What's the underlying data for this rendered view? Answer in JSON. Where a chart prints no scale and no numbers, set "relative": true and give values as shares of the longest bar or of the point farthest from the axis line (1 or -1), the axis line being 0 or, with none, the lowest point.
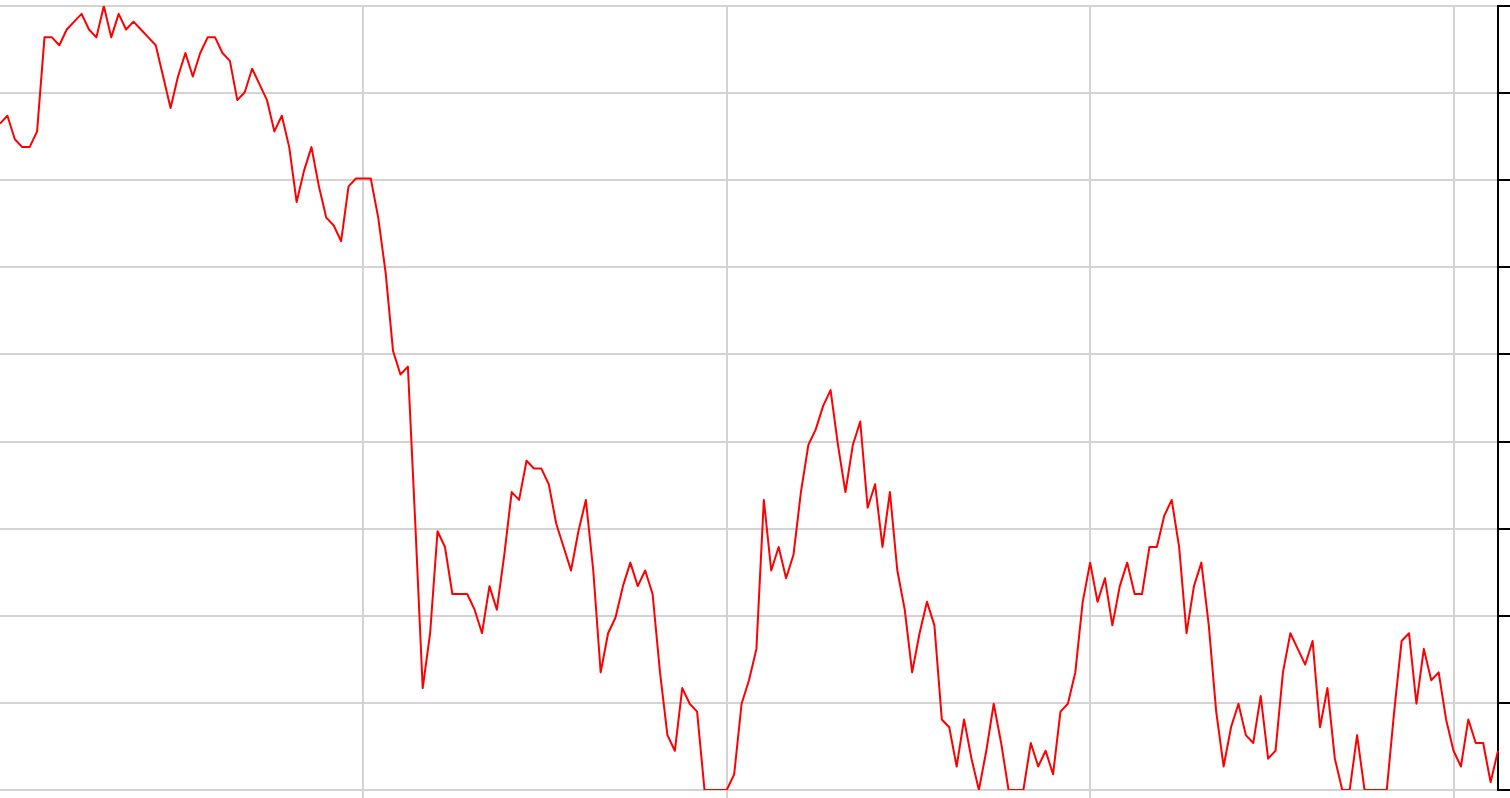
{
  "chart_data": {
    "type": "line",
    "relative": true,
    "grid": true,
    "legend": false,
    "marker": "none",
    "line_style": "solid",
    "categories": [
      null,
      null,
      null,
      null,
      null,
      null,
      null,
      null,
      null,
      null,
      null,
      null,
      null,
      null,
      null,
      null,
      null,
      null,
      null,
      null,
      null,
      null,
      null,
      null,
      null,
      null,
      null,
      null,
      null,
      null,
      null,
      null,
      null,
      null,
      null,
      null,
      null,
      null,
      null,
      null,
      null,
      null,
      null,
      null,
      null,
      null,
      null,
      null,
      null,
      null,
      null,
      null,
      null,
      null,
      null,
      null,
      null,
      null,
      null,
      null,
      null,
      null,
      null,
      null,
      null,
      null,
      null,
      null,
      null,
      null,
      null,
      null,
      null,
      null,
      null,
      null,
      null,
      null,
      null,
      null,
      null,
      null,
      null,
      null,
      null,
      null,
      null,
      null,
      null,
      null,
      null,
      null,
      null,
      null,
      null,
      null,
      null,
      null,
      null,
      null,
      null,
      null,
      null,
      null,
      null,
      null,
      null,
      null,
      null,
      null,
      null,
      null,
      null,
      null,
      null,
      null,
      null,
      null,
      null,
      null,
      null,
      null,
      null,
      null,
      null,
      null,
      null,
      null,
      null,
      null,
      null,
      null,
      null,
      null,
      null,
      null,
      null,
      null,
      null,
      null,
      null,
      null,
      null,
      null,
      null,
      null,
      null,
      null,
      null,
      null,
      null,
      null,
      null,
      null,
      null,
      null,
      null,
      null,
      null,
      null,
      null,
      null,
      null,
      null,
      null,
      null,
      null,
      null,
      null,
      null,
      null,
      null,
      null,
      null,
      null,
      null,
      null,
      null,
      null,
      null,
      null,
      null,
      null,
      null,
      null,
      null,
      null,
      null,
      null,
      null,
      null,
      null,
      null,
      null,
      null,
      null,
      null,
      null,
      null,
      null,
      null,
      null,
      null
    ],
    "series": [
      {
        "color": "#ff0000",
        "values": [
          0.85,
          0.86,
          0.83,
          0.82,
          0.82,
          0.84,
          0.96,
          0.96,
          0.95,
          0.97,
          0.98,
          0.99,
          0.97,
          0.96,
          1,
          0.96,
          0.99,
          0.97,
          0.98,
          0.97,
          0.96,
          0.95,
          0.91,
          0.87,
          0.91,
          0.94,
          0.91,
          0.94,
          0.96,
          0.96,
          0.94,
          0.93,
          0.88,
          0.89,
          0.92,
          0.9,
          0.88,
          0.84,
          0.86,
          0.82,
          0.75,
          0.79,
          0.82,
          0.77,
          0.73,
          0.72,
          0.7,
          0.77,
          0.78,
          0.78,
          0.78,
          0.73,
          0.66,
          0.56,
          0.53,
          0.54,
          0.34,
          0.13,
          0.2,
          0.33,
          0.31,
          0.25,
          0.25,
          0.25,
          0.23,
          0.2,
          0.26,
          0.23,
          0.3,
          0.38,
          0.37,
          0.42,
          0.41,
          0.41,
          0.39,
          0.34,
          0.31,
          0.28,
          0.33,
          0.37,
          0.28,
          0.15,
          0.2,
          0.22,
          0.26,
          0.29,
          0.26,
          0.28,
          0.25,
          0.15,
          0.07,
          0.05,
          0.13,
          0.11,
          0.1,
          0,
          0,
          0,
          0,
          0.02,
          0.11,
          0.14,
          0.18,
          0.37,
          0.28,
          0.31,
          0.27,
          0.3,
          0.38,
          0.44,
          0.46,
          0.49,
          0.51,
          0.44,
          0.38,
          0.44,
          0.47,
          0.36,
          0.39,
          0.31,
          0.38,
          0.28,
          0.23,
          0.15,
          0.2,
          0.24,
          0.21,
          0.09,
          0.08,
          0.03,
          0.09,
          0.04,
          0,
          0.05,
          0.11,
          0.06,
          0,
          0,
          0,
          0.06,
          0.03,
          0.05,
          0.02,
          0.1,
          0.11,
          0.15,
          0.24,
          0.29,
          0.24,
          0.27,
          0.21,
          0.26,
          0.29,
          0.25,
          0.25,
          0.31,
          0.31,
          0.35,
          0.37,
          0.31,
          0.2,
          0.26,
          0.29,
          0.21,
          0.1,
          0.03,
          0.08,
          0.11,
          0.07,
          0.06,
          0.12,
          0.04,
          0.05,
          0.15,
          0.2,
          0.18,
          0.16,
          0.19,
          0.08,
          0.13,
          0.04,
          0,
          0,
          0.07,
          0,
          0,
          0,
          0,
          0.1,
          0.19,
          0.2,
          0.11,
          0.18,
          0.14,
          0.15,
          0.09,
          0.05,
          0.03,
          0.09,
          0.06,
          0.06,
          0.01,
          0.05
        ]
      }
    ]
  }
}
